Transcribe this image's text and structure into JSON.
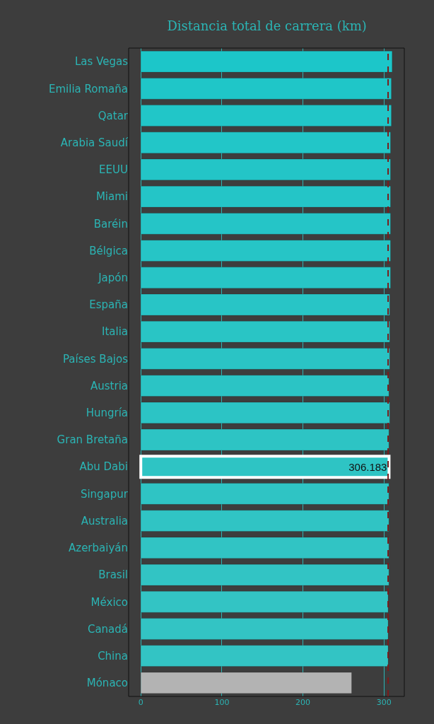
{
  "chart_data": {
    "type": "bar",
    "orientation": "horizontal",
    "title": "Distancia total de carrera (km)",
    "categories": [
      "Las Vegas",
      "Emilia Romaña",
      "Qatar",
      "Arabia Saudí",
      "EEUU",
      "Miami",
      "Baréin",
      "Bélgica",
      "Japón",
      "España",
      "Italia",
      "Países Bajos",
      "Austria",
      "Hungría",
      "Gran Bretaña",
      "Abu Dabi",
      "Singapur",
      "Australia",
      "Azerbaiyán",
      "Brasil",
      "México",
      "Canadá",
      "China",
      "Mónaco"
    ],
    "values": [
      310,
      309,
      309,
      308,
      308,
      308,
      308,
      308,
      308,
      307,
      307,
      307,
      306,
      307,
      306,
      306.183,
      306,
      306,
      306,
      306,
      305,
      305,
      305,
      260
    ],
    "colors": [
      "#1cc6c9",
      "#1fc6c8",
      "#21c6c8",
      "#22c6c8",
      "#23c5c7",
      "#24c5c7",
      "#25c5c7",
      "#26c5c6",
      "#27c5c6",
      "#28c5c6",
      "#29c5c5",
      "#2ac4c5",
      "#2bc4c5",
      "#2cc4c5",
      "#2dc4c4",
      "#2ec4c4",
      "#2fc4c4",
      "#30c4c4",
      "#31c4c4",
      "#32c4c4",
      "#33c4c4",
      "#33c4c4",
      "#33c4c4",
      "#b3b3b3"
    ],
    "value_labels": [
      null,
      null,
      null,
      null,
      null,
      null,
      null,
      null,
      null,
      null,
      null,
      null,
      null,
      null,
      null,
      "306.183",
      null,
      null,
      null,
      null,
      null,
      null,
      null,
      null
    ],
    "xlim": [
      -15,
      325
    ],
    "xticks": [
      0,
      100,
      200,
      300
    ],
    "grid": "x",
    "ref_lines": [
      {
        "axis": "x",
        "value": 305,
        "color": "#7a1c1c",
        "line_style": "dashed"
      }
    ]
  }
}
